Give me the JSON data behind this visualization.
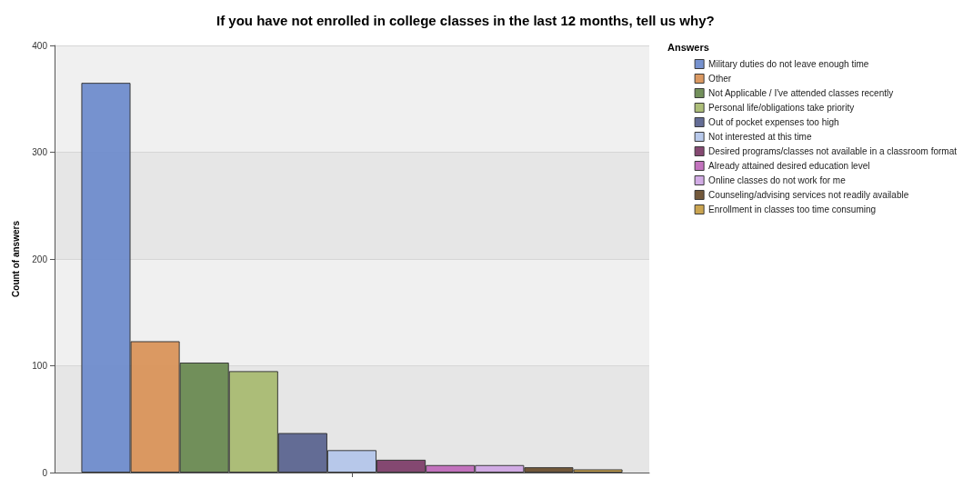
{
  "chart_data": {
    "type": "bar",
    "title": "If you have not enrolled in college classes in the last 12 months, tell us why?",
    "ylabel": "Count of answers",
    "legend_title": "Answers",
    "categories": [
      null
    ],
    "series": [
      {
        "name": "Military duties do not leave enough time",
        "color": "#6f8ccc",
        "values": [
          365
        ]
      },
      {
        "name": "Other",
        "color": "#d9935a",
        "values": [
          123
        ]
      },
      {
        "name": "Not Applicable / I've attended classes recently",
        "color": "#6a8a52",
        "values": [
          103
        ]
      },
      {
        "name": "Personal life/obligations take priority",
        "color": "#a9bb72",
        "values": [
          95
        ]
      },
      {
        "name": "Out of pocket expenses too high",
        "color": "#5c6590",
        "values": [
          37
        ]
      },
      {
        "name": "Not interested at this time",
        "color": "#b4c6ea",
        "values": [
          21
        ]
      },
      {
        "name": "Desired programs/classes not available in a classroom format",
        "color": "#7e3f6a",
        "values": [
          12
        ]
      },
      {
        "name": "Already attained desired education level",
        "color": "#c06cbb",
        "values": [
          7
        ]
      },
      {
        "name": "Online classes do not work for me",
        "color": "#d0a8e4",
        "values": [
          7
        ]
      },
      {
        "name": "Counseling/advising services not readily available",
        "color": "#6b5030",
        "values": [
          5
        ]
      },
      {
        "name": "Enrollment in classes too time consuming",
        "color": "#c8a048",
        "values": [
          3
        ]
      }
    ],
    "ylim": [
      0,
      400
    ],
    "yticks": [
      0,
      100,
      200,
      300,
      400
    ],
    "grid": "y",
    "legend": "top right"
  }
}
